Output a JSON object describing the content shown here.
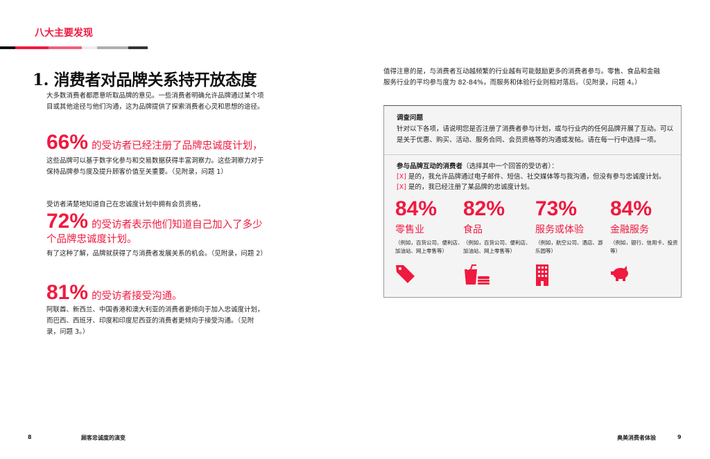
{
  "header": {
    "section": "八大主要发现"
  },
  "left": {
    "title": "1. 消费者对品牌关系持开放态度",
    "intro": "大多数消费者都愿意听取品牌的意见。一些消费者明确允许品牌通过某个项目或其他途径与他们沟通，这为品牌提供了探索消费者心灵和思想的途径。",
    "stat1": {
      "value": "66%",
      "text": "的受访者已经注册了品牌忠诚度计划，",
      "body": "这些品牌可以基于数字化参与和交易数据获得丰富洞察力。这些洞察力对于保持品牌参与度及提升顾客价值至关重要。（见附录，问题 1）"
    },
    "stat2": {
      "lead": "受访者清楚地知道自己在忠诚度计划中拥有会员资格，",
      "value": "72%",
      "text": "的受访者表示他们知道自己加入了多少",
      "text2": "个品牌忠诚度计划。",
      "body": "有了这种了解，品牌就获得了与消费者发展关系的机会。（见附录，问题 2）"
    },
    "stat3": {
      "value": "81%",
      "text": "的受访者接受沟通。",
      "body": "阿联酋、新西兰、中国香港和澳大利亚的消费者更倾向于加入忠诚度计划，而巴西、西班牙、印度和印度尼西亚的消费者更倾向于接受沟通。（见附录，问题 3。）"
    }
  },
  "right": {
    "intro": "值得注意的是，与消费者互动越频繁的行业越有可能鼓励更多的消费者参与。零售、食品和金融服务行业的平均参与度为 82-84%，而服务和体验行业则相对落后。（见附录，问题 4。）",
    "box": {
      "q_title": "调查问题",
      "q_text": "针对以下各项，请说明您是否注册了消费者参与计划，或与行业内的任何品牌开展了互动。可以是关于优惠、购买、活动、服务合同、会员资格等的沟通或发帖。请在每一行中选择一项。",
      "a_title": "参与品牌互动的消费者",
      "a_title_note": "（选择其中一个回答的受访者）：",
      "mark": "[X]",
      "opt1": "是的，我允许品牌通过电子邮件、短信、社交媒体等与我沟通，但没有参与忠诚度计划。",
      "opt2": "是的，我已经注册了某品牌的忠诚度计划。",
      "stats": [
        {
          "value": "84%",
          "label": "零售业",
          "note": "（例如，百货公司、便利店、加油站、网上零售等）",
          "icon": "price-tag-icon"
        },
        {
          "value": "82%",
          "label": "食品",
          "note": "（例如，百货公司、便利店、加油站、网上零售等）",
          "icon": "drink-burger-icon"
        },
        {
          "value": "73%",
          "label": "服务或体验",
          "note": "（例如，航空公司、酒店、游乐园等）",
          "icon": "building-icon"
        },
        {
          "value": "84%",
          "label": "金融服务",
          "note": "（例如，银行、信用卡、投资等）",
          "icon": "piggy-bank-icon"
        }
      ]
    }
  },
  "footer": {
    "left_page": "8",
    "left_title": "顾客忠诚度的演变",
    "right_title": "奥美消费者体验",
    "right_page": "9"
  },
  "colors": {
    "accent": "#f0193f"
  }
}
